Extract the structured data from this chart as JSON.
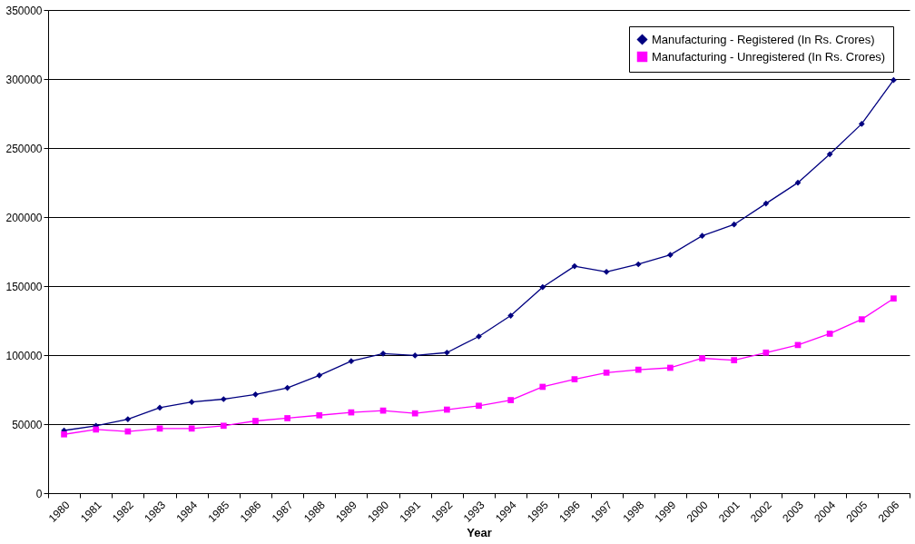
{
  "chart_data": {
    "type": "line",
    "xlabel": "Year",
    "categories": [
      "1980",
      "1981",
      "1982",
      "1983",
      "1984",
      "1985",
      "1986",
      "1987",
      "1988",
      "1989",
      "1990",
      "1991",
      "1992",
      "1993",
      "1994",
      "1995",
      "1996",
      "1997",
      "1998",
      "1999",
      "2000",
      "2001",
      "2002",
      "2003",
      "2004",
      "2005",
      "2006"
    ],
    "series": [
      {
        "name": "Manufacturing - Registered (In Rs. Crores)",
        "color": "#000080",
        "marker": "diamond",
        "values": [
          45400,
          48800,
          53600,
          61900,
          66000,
          68100,
          71500,
          76300,
          85300,
          95600,
          101100,
          99700,
          101800,
          113500,
          128600,
          149200,
          164400,
          160300,
          165800,
          172600,
          186400,
          194600,
          209800,
          224900,
          245500,
          267500,
          299200
        ]
      },
      {
        "name": "Manufacturing - Unregistered (In Rs. Crores)",
        "color": "#ff00ff",
        "marker": "square",
        "values": [
          42600,
          46100,
          44700,
          46800,
          46800,
          48800,
          52300,
          54300,
          56400,
          58500,
          59800,
          57800,
          60500,
          63300,
          67400,
          77000,
          82500,
          87300,
          89400,
          90800,
          97700,
          96300,
          101800,
          107300,
          115500,
          125900,
          141000
        ]
      }
    ],
    "ylim": [
      0,
      350000
    ],
    "yticks": [
      0,
      50000,
      100000,
      150000,
      200000,
      250000,
      300000,
      350000
    ],
    "grid": "y",
    "legend": "top right"
  }
}
